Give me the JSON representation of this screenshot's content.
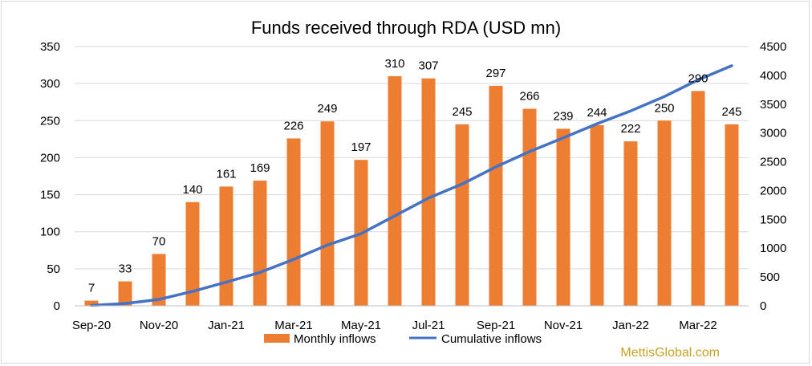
{
  "chart_data": {
    "type": "bar",
    "title": "Funds received through RDA (USD mn)",
    "categories": [
      "Sep-20",
      "Oct-20",
      "Nov-20",
      "Dec-20",
      "Jan-21",
      "Feb-21",
      "Mar-21",
      "Apr-21",
      "May-21",
      "Jun-21",
      "Jul-21",
      "Aug-21",
      "Sep-21",
      "Oct-21",
      "Nov-21",
      "Dec-21",
      "Jan-22",
      "Feb-22",
      "Mar-22",
      "Apr-22"
    ],
    "x_tick_labels": [
      "Sep-20",
      "Nov-20",
      "Jan-21",
      "Mar-21",
      "May-21",
      "Jul-21",
      "Sep-21",
      "Nov-21",
      "Jan-22",
      "Mar-22"
    ],
    "series": [
      {
        "name": "Monthly inflows",
        "type": "bar",
        "axis": "left",
        "color": "#ed7d31",
        "values": [
          7,
          33,
          70,
          140,
          161,
          169,
          226,
          249,
          197,
          310,
          307,
          245,
          297,
          266,
          239,
          244,
          222,
          250,
          290,
          245
        ]
      },
      {
        "name": "Cumulative inflows",
        "type": "line",
        "axis": "right",
        "color": "#4472c4",
        "values": [
          7,
          40,
          110,
          250,
          411,
          580,
          806,
          1055,
          1252,
          1562,
          1869,
          2114,
          2411,
          2677,
          2916,
          3160,
          3382,
          3632,
          3922,
          4167
        ]
      }
    ],
    "ylim_left": [
      0,
      350
    ],
    "yticks_left": [
      0,
      50,
      100,
      150,
      200,
      250,
      300,
      350
    ],
    "ylim_right": [
      0,
      4500
    ],
    "yticks_right": [
      0,
      500,
      1000,
      1500,
      2000,
      2500,
      3000,
      3500,
      4000,
      4500
    ],
    "grid": true,
    "legend": "bottom"
  },
  "watermark": "MettisGlobal.com"
}
